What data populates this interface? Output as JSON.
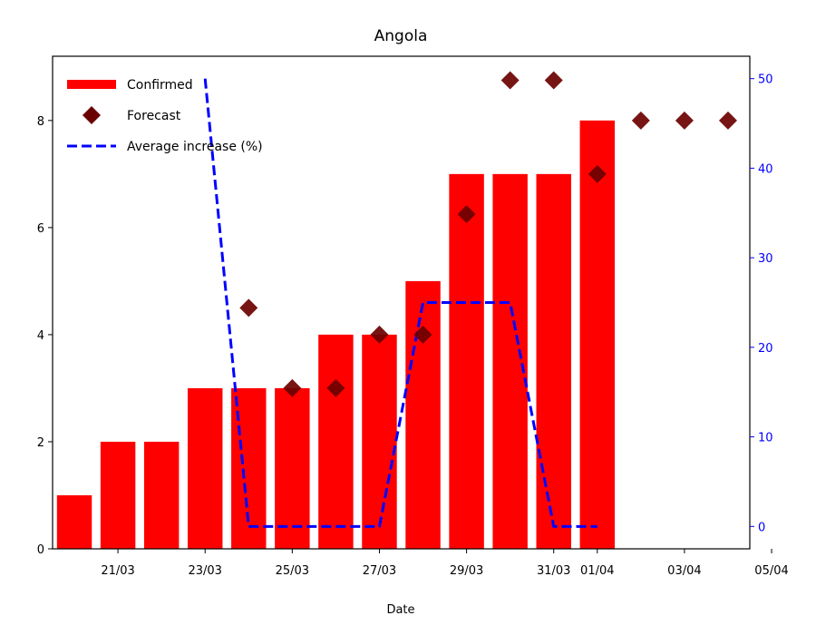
{
  "chart_data": {
    "type": "bar",
    "title": "Angola",
    "xlabel": "Date",
    "ylabel": "",
    "ylabel_right": "",
    "x_tick_labels": [
      "21/03",
      "23/03",
      "25/03",
      "27/03",
      "29/03",
      "31/03",
      "01/04",
      "03/04",
      "05/04"
    ],
    "left_ylim": [
      0,
      9.2
    ],
    "left_yticks": [
      0,
      2,
      4,
      6,
      8
    ],
    "right_ylim": [
      -2.5,
      52.5
    ],
    "right_yticks": [
      0,
      10,
      20,
      30,
      40,
      50
    ],
    "legend_position": "upper-left",
    "grid": false,
    "series": [
      {
        "name": "Confirmed",
        "kind": "bar",
        "color": "#ff0000",
        "axis": "left",
        "x": [
          "20/03",
          "21/03",
          "22/03",
          "23/03",
          "24/03",
          "25/03",
          "26/03",
          "27/03",
          "28/03",
          "29/03",
          "30/03",
          "31/03",
          "01/04"
        ],
        "values": [
          1,
          2,
          2,
          3,
          3,
          3,
          4,
          4,
          5,
          7,
          7,
          7,
          8
        ]
      },
      {
        "name": "Forecast",
        "kind": "scatter",
        "marker": "diamond",
        "color": "#6b0000",
        "axis": "left",
        "x": [
          "24/03",
          "25/03",
          "26/03",
          "27/03",
          "28/03",
          "29/03",
          "30/03",
          "31/03",
          "01/04",
          "02/04",
          "03/04",
          "04/04"
        ],
        "values": [
          4.5,
          3,
          3,
          4,
          4,
          6.25,
          8.75,
          8.75,
          7,
          8,
          8,
          8
        ]
      },
      {
        "name": "Average increase (%)",
        "kind": "line",
        "style": "dashed",
        "color": "#0000ff",
        "axis": "right",
        "x": [
          "23/03",
          "24/03",
          "25/03",
          "26/03",
          "27/03",
          "28/03",
          "29/03",
          "30/03",
          "31/03",
          "01/04"
        ],
        "values": [
          50,
          0,
          0,
          0,
          0,
          25,
          25,
          25,
          0,
          0
        ]
      }
    ]
  }
}
